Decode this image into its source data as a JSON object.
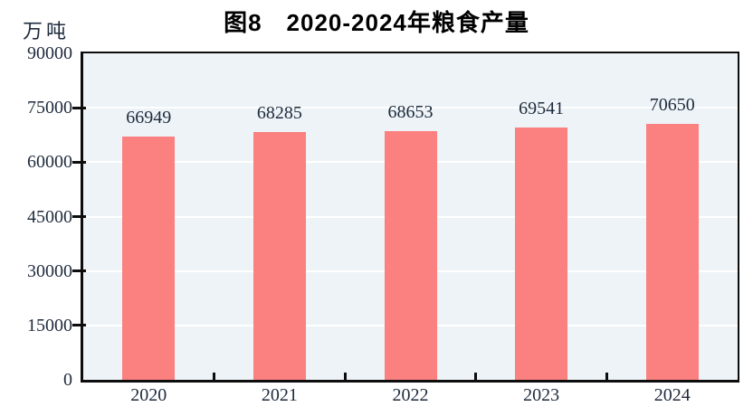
{
  "chart_data": {
    "type": "bar",
    "title": "图8　2020-2024年粮食产量",
    "unit_label": "万吨",
    "ylabel": "万吨",
    "xlabel": "",
    "categories": [
      "2020",
      "2021",
      "2022",
      "2023",
      "2024"
    ],
    "values": [
      66949,
      68285,
      68653,
      69541,
      70650
    ],
    "data_labels_shown": true,
    "ylim": [
      0,
      90000
    ],
    "yticks": [
      0,
      15000,
      30000,
      45000,
      60000,
      75000,
      90000
    ],
    "grid": true,
    "legend_position": "none",
    "colors": {
      "bar_fill": "#fb8080",
      "plot_bg": "#edf3f7",
      "gridline": "#ffffff",
      "axis": "#0d0d0d",
      "tick_text": "#1e2b3c",
      "title_text": "#000000"
    }
  }
}
